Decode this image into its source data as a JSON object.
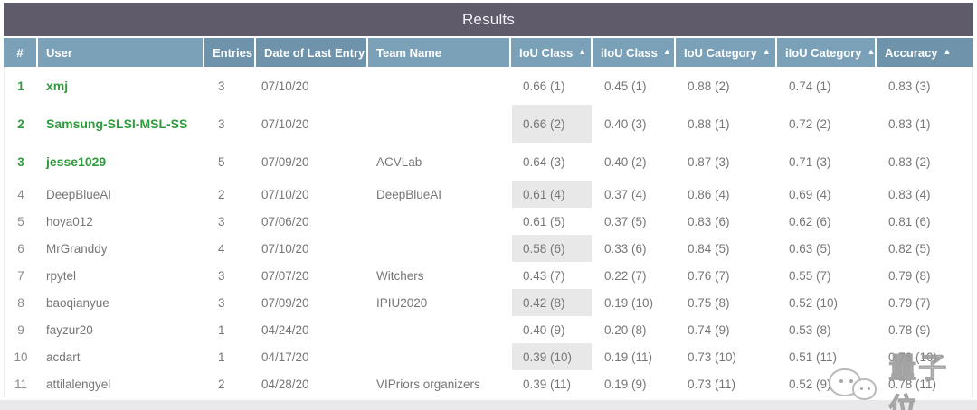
{
  "title": "Results",
  "sort_indicator": "▲",
  "watermark": {
    "icon": "wechat-bubbles-icon",
    "text": "量子位"
  },
  "colors": {
    "title_bar": "#5F5B6B",
    "header": "#7AA1B8",
    "header_dark": "#6E93AB",
    "rank_green": "#2E9B3C",
    "body_text": "#767676",
    "highlight_cell": "#E8E8E8",
    "bottom_band": "#E9E9EB"
  },
  "table": {
    "columns": [
      {
        "key": "rank",
        "label": "#",
        "sortable": false,
        "dark": false,
        "center": true
      },
      {
        "key": "user",
        "label": "User",
        "sortable": false,
        "dark": false,
        "center": false
      },
      {
        "key": "entries",
        "label": "Entries",
        "sortable": false,
        "dark": true,
        "center": false
      },
      {
        "key": "date",
        "label": "Date of Last Entry",
        "sortable": false,
        "dark": true,
        "center": false
      },
      {
        "key": "team",
        "label": "Team Name",
        "sortable": false,
        "dark": false,
        "center": false
      },
      {
        "key": "iou_class",
        "label": "IoU Class",
        "sortable": true,
        "dark": false,
        "center": false
      },
      {
        "key": "iiou_class",
        "label": "iIoU Class",
        "sortable": true,
        "dark": false,
        "center": false
      },
      {
        "key": "iou_category",
        "label": "IoU Category",
        "sortable": true,
        "dark": false,
        "center": false
      },
      {
        "key": "iiou_category",
        "label": "iIoU Category",
        "sortable": true,
        "dark": false,
        "center": false
      },
      {
        "key": "accuracy",
        "label": "Accuracy",
        "sortable": true,
        "dark": true,
        "center": false
      }
    ],
    "rows": [
      {
        "rank": "1",
        "user": "xmj",
        "entries": "3",
        "date": "07/10/20",
        "team": "",
        "iou_class": "0.66 (1)",
        "iiou_class": "0.45 (1)",
        "iou_category": "0.88 (2)",
        "iiou_category": "0.74 (1)",
        "accuracy": "0.83 (3)",
        "top": true,
        "highlight": false
      },
      {
        "rank": "2",
        "user": "Samsung-SLSI-MSL-SS",
        "entries": "3",
        "date": "07/10/20",
        "team": "",
        "iou_class": "0.66 (2)",
        "iiou_class": "0.40 (3)",
        "iou_category": "0.88 (1)",
        "iiou_category": "0.72 (2)",
        "accuracy": "0.83 (1)",
        "top": true,
        "highlight": true
      },
      {
        "rank": "3",
        "user": "jesse1029",
        "entries": "5",
        "date": "07/09/20",
        "team": "ACVLab",
        "iou_class": "0.64 (3)",
        "iiou_class": "0.40 (2)",
        "iou_category": "0.87 (3)",
        "iiou_category": "0.71 (3)",
        "accuracy": "0.83 (2)",
        "top": true,
        "highlight": false
      },
      {
        "rank": "4",
        "user": "DeepBlueAI",
        "entries": "2",
        "date": "07/10/20",
        "team": "DeepBlueAI",
        "iou_class": "0.61 (4)",
        "iiou_class": "0.37 (4)",
        "iou_category": "0.86 (4)",
        "iiou_category": "0.69 (4)",
        "accuracy": "0.83 (4)",
        "top": false,
        "highlight": true
      },
      {
        "rank": "5",
        "user": "hoya012",
        "entries": "3",
        "date": "07/06/20",
        "team": "",
        "iou_class": "0.61 (5)",
        "iiou_class": "0.37 (5)",
        "iou_category": "0.83 (6)",
        "iiou_category": "0.62 (6)",
        "accuracy": "0.81 (6)",
        "top": false,
        "highlight": false
      },
      {
        "rank": "6",
        "user": "MrGranddy",
        "entries": "4",
        "date": "07/10/20",
        "team": "",
        "iou_class": "0.58 (6)",
        "iiou_class": "0.33 (6)",
        "iou_category": "0.84 (5)",
        "iiou_category": "0.63 (5)",
        "accuracy": "0.82 (5)",
        "top": false,
        "highlight": true
      },
      {
        "rank": "7",
        "user": "rpytel",
        "entries": "3",
        "date": "07/07/20",
        "team": "Witchers",
        "iou_class": "0.43 (7)",
        "iiou_class": "0.22 (7)",
        "iou_category": "0.76 (7)",
        "iiou_category": "0.55 (7)",
        "accuracy": "0.79 (8)",
        "top": false,
        "highlight": false
      },
      {
        "rank": "8",
        "user": "baoqianyue",
        "entries": "3",
        "date": "07/09/20",
        "team": "IPIU2020",
        "iou_class": "0.42 (8)",
        "iiou_class": "0.19 (10)",
        "iou_category": "0.75 (8)",
        "iiou_category": "0.52 (10)",
        "accuracy": "0.79 (7)",
        "top": false,
        "highlight": true
      },
      {
        "rank": "9",
        "user": "fayzur20",
        "entries": "1",
        "date": "04/24/20",
        "team": "",
        "iou_class": "0.40 (9)",
        "iiou_class": "0.20 (8)",
        "iou_category": "0.74 (9)",
        "iiou_category": "0.53 (8)",
        "accuracy": "0.78 (9)",
        "top": false,
        "highlight": false
      },
      {
        "rank": "10",
        "user": "acdart",
        "entries": "1",
        "date": "04/17/20",
        "team": "",
        "iou_class": "0.39 (10)",
        "iiou_class": "0.19 (11)",
        "iou_category": "0.73 (10)",
        "iiou_category": "0.51 (11)",
        "accuracy": "0.78 (10)",
        "top": false,
        "highlight": true
      },
      {
        "rank": "11",
        "user": "attilalengyel",
        "entries": "2",
        "date": "04/28/20",
        "team": "VIPriors organizers",
        "iou_class": "0.39 (11)",
        "iiou_class": "0.19 (9)",
        "iou_category": "0.73 (11)",
        "iiou_category": "0.52 (9)",
        "accuracy": "0.78 (11)",
        "top": false,
        "highlight": false
      }
    ]
  }
}
